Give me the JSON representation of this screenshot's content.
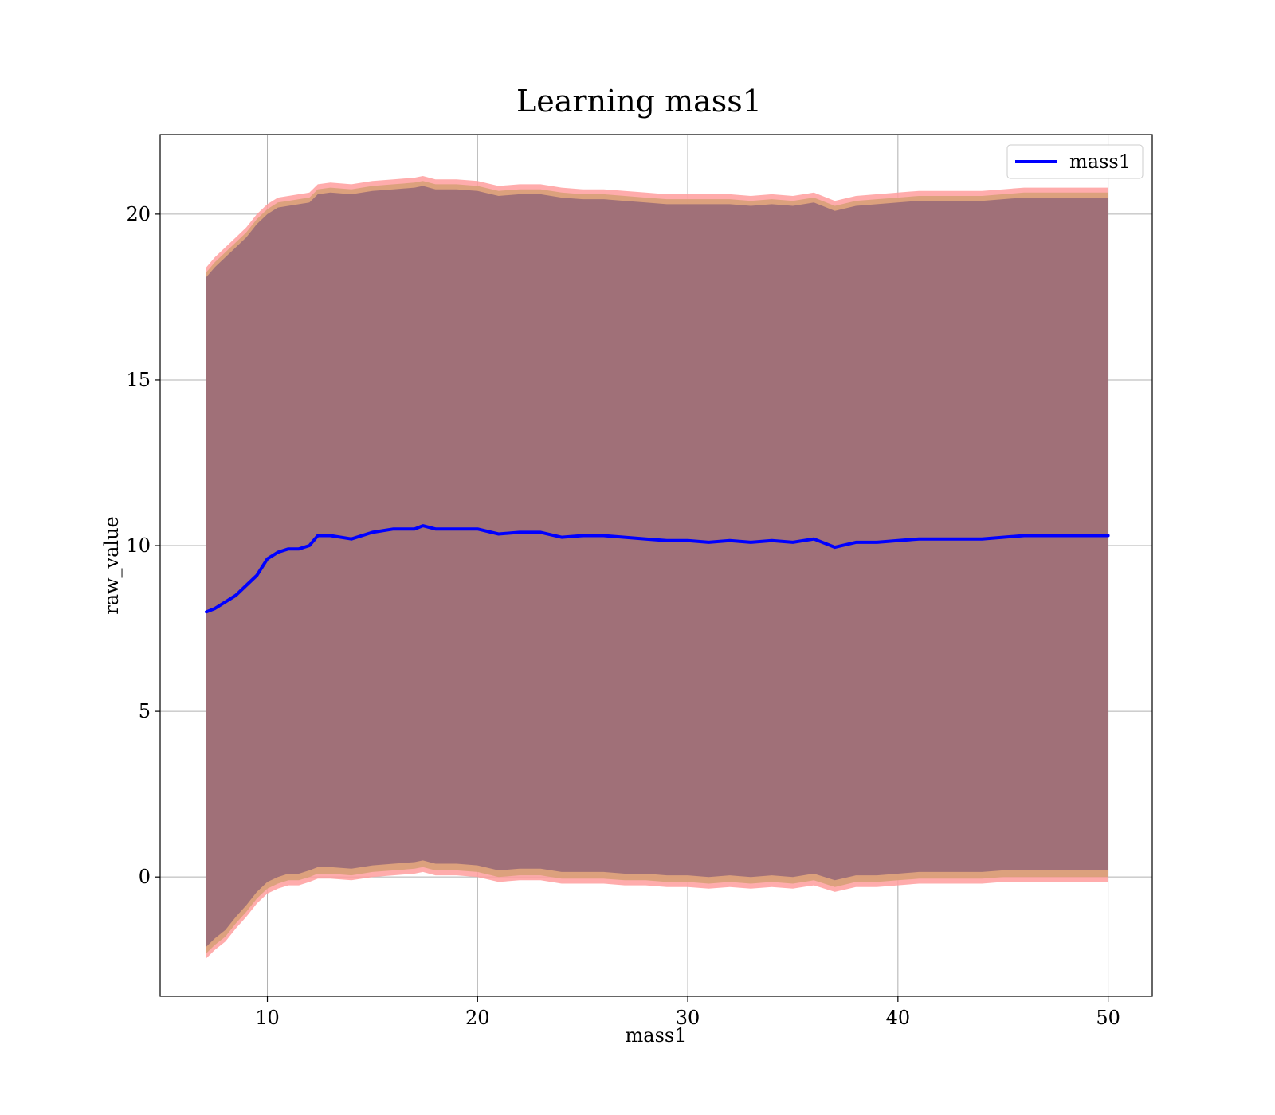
{
  "chart_data": {
    "type": "area",
    "title": "Learning mass1",
    "xlabel": "mass1",
    "ylabel": "raw_value",
    "xlim": [
      4.9,
      52.1
    ],
    "ylim": [
      -3.6,
      22.4
    ],
    "x_ticks": [
      10,
      20,
      30,
      40,
      50
    ],
    "y_ticks": [
      0,
      5,
      10,
      15,
      20
    ],
    "grid": true,
    "legend": {
      "position": "top-right",
      "entries": [
        "mass1"
      ]
    },
    "colors": {
      "line": "#0000ff",
      "band_fill": "#a07078",
      "band_edge_light": "#ff9e9e",
      "band_edge_mid": "#d8a078",
      "grid": "#b0b0b0"
    },
    "series": [
      {
        "name": "mass1",
        "x": [
          7.1,
          7.5,
          8.0,
          8.5,
          9.0,
          9.5,
          10.0,
          10.5,
          11.0,
          11.5,
          12.0,
          12.4,
          13.0,
          14.0,
          15.0,
          16.0,
          17.0,
          17.4,
          18.0,
          19.0,
          20.0,
          21.0,
          22.0,
          23.0,
          24.0,
          25.0,
          26.0,
          27.0,
          28.0,
          29.0,
          30.0,
          31.0,
          32.0,
          33.0,
          34.0,
          35.0,
          36.0,
          37.0,
          38.0,
          39.0,
          40.0,
          41.0,
          42.0,
          43.0,
          44.0,
          45.0,
          46.0,
          47.0,
          48.0,
          49.0,
          50.0
        ],
        "values": [
          8.0,
          8.1,
          8.3,
          8.5,
          8.8,
          9.1,
          9.6,
          9.8,
          9.9,
          9.9,
          10.0,
          10.3,
          10.3,
          10.2,
          10.4,
          10.5,
          10.5,
          10.6,
          10.5,
          10.5,
          10.5,
          10.35,
          10.4,
          10.4,
          10.25,
          10.3,
          10.3,
          10.25,
          10.2,
          10.15,
          10.15,
          10.1,
          10.15,
          10.1,
          10.15,
          10.1,
          10.2,
          9.95,
          10.1,
          10.1,
          10.15,
          10.2,
          10.2,
          10.2,
          10.2,
          10.25,
          10.3,
          10.3,
          10.3,
          10.3,
          10.3
        ],
        "band_upper": [
          18.2,
          18.5,
          18.8,
          19.1,
          19.4,
          19.8,
          20.1,
          20.3,
          20.35,
          20.4,
          20.45,
          20.7,
          20.75,
          20.7,
          20.8,
          20.85,
          20.9,
          20.95,
          20.85,
          20.85,
          20.8,
          20.65,
          20.7,
          20.7,
          20.6,
          20.55,
          20.55,
          20.5,
          20.45,
          20.4,
          20.4,
          20.4,
          20.4,
          20.35,
          20.4,
          20.35,
          20.45,
          20.2,
          20.35,
          20.4,
          20.45,
          20.5,
          20.5,
          20.5,
          20.5,
          20.55,
          20.6,
          20.6,
          20.6,
          20.6,
          20.6
        ],
        "band_lower": [
          -2.2,
          -1.95,
          -1.7,
          -1.3,
          -0.95,
          -0.55,
          -0.25,
          -0.1,
          0.0,
          0.0,
          0.1,
          0.2,
          0.2,
          0.15,
          0.25,
          0.3,
          0.35,
          0.4,
          0.3,
          0.3,
          0.25,
          0.1,
          0.15,
          0.15,
          0.05,
          0.05,
          0.05,
          0.0,
          0.0,
          -0.05,
          -0.05,
          -0.1,
          -0.05,
          -0.1,
          -0.05,
          -0.1,
          0.0,
          -0.2,
          -0.05,
          -0.05,
          0.0,
          0.05,
          0.05,
          0.05,
          0.05,
          0.1,
          0.1,
          0.1,
          0.1,
          0.1,
          0.1
        ]
      }
    ]
  }
}
